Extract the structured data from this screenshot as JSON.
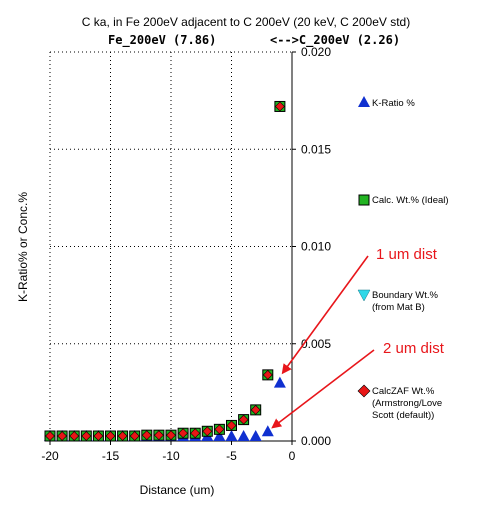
{
  "chart_data": {
    "type": "scatter",
    "title": "C ka, in Fe 200eV adjacent to C 200eV (20 keV, C 200eV std)",
    "subtitle_left": "Fe_200eV (7.86)",
    "subtitle_right": "<-->C_200eV (2.26)",
    "xlabel": "Distance (um)",
    "ylabel": "K-Ratio% or Conc.%",
    "xlim": [
      -20,
      0
    ],
    "ylim": [
      0,
      0.02
    ],
    "x_ticks": [
      "-20",
      "-15",
      "-10",
      "-5",
      "0"
    ],
    "y_ticks": [
      "0.000",
      "0.005",
      "0.010",
      "0.015",
      "0.020"
    ],
    "grid": "dotted",
    "legend_position": "right",
    "series": [
      {
        "name": "K-Ratio %",
        "marker": "triangle",
        "color": "#1030d0",
        "x": [
          -20,
          -19,
          -18,
          -17,
          -16,
          -15,
          -14,
          -13,
          -12,
          -11,
          -10,
          -9,
          -8,
          -7,
          -6,
          -5,
          -4,
          -3,
          -2,
          -1
        ],
        "y": [
          0.0,
          0.0,
          0.0,
          0.0,
          0.0,
          0.0,
          0.0,
          0.0,
          0.0,
          0.0,
          0.0,
          0.0,
          0.0,
          0.0,
          0.0,
          0.0001,
          0.0001,
          0.0002,
          0.0005,
          0.003
        ]
      },
      {
        "name": "Calc. Wt.% (Ideal)",
        "marker": "square",
        "color": "#22b422",
        "x": [
          -20,
          -19,
          -18,
          -17,
          -16,
          -15,
          -14,
          -13,
          -12,
          -11,
          -10,
          -9,
          -8,
          -7,
          -6,
          -5,
          -4,
          -3,
          -2,
          -1
        ],
        "y": [
          0.0001,
          0.0001,
          0.0001,
          0.0001,
          0.0002,
          0.0002,
          0.0002,
          0.0002,
          0.0003,
          0.0003,
          0.0003,
          0.0004,
          0.0004,
          0.0005,
          0.0006,
          0.0008,
          0.0011,
          0.0016,
          0.0034,
          0.0172
        ]
      },
      {
        "name": "Boundary Wt.%",
        "name_line2": "(from Mat B)",
        "marker": "triangle-down",
        "color": "#30d8e8",
        "x": [],
        "y": []
      },
      {
        "name": "CalcZAF Wt.%",
        "name_line2": "(Armstrong/Love",
        "name_line3": "Scott (default))",
        "marker": "diamond",
        "color": "#e81616",
        "x": [
          -20,
          -19,
          -18,
          -17,
          -16,
          -15,
          -14,
          -13,
          -12,
          -11,
          -10,
          -9,
          -8,
          -7,
          -6,
          -5,
          -4,
          -3,
          -2,
          -1
        ],
        "y": [
          0.0001,
          0.0001,
          0.0001,
          0.0001,
          0.0002,
          0.0002,
          0.0002,
          0.0002,
          0.0003,
          0.0003,
          0.0003,
          0.0004,
          0.0004,
          0.0005,
          0.0006,
          0.0008,
          0.0011,
          0.0016,
          0.0034,
          0.0172
        ]
      }
    ],
    "annotations": [
      {
        "text": "1 um dist",
        "color": "#e8161b",
        "points_to": {
          "x": -1,
          "y": 0.003
        }
      },
      {
        "text": "2 um dist",
        "color": "#e8161b",
        "points_to": {
          "x": -2,
          "y": 0.0005
        }
      }
    ]
  }
}
